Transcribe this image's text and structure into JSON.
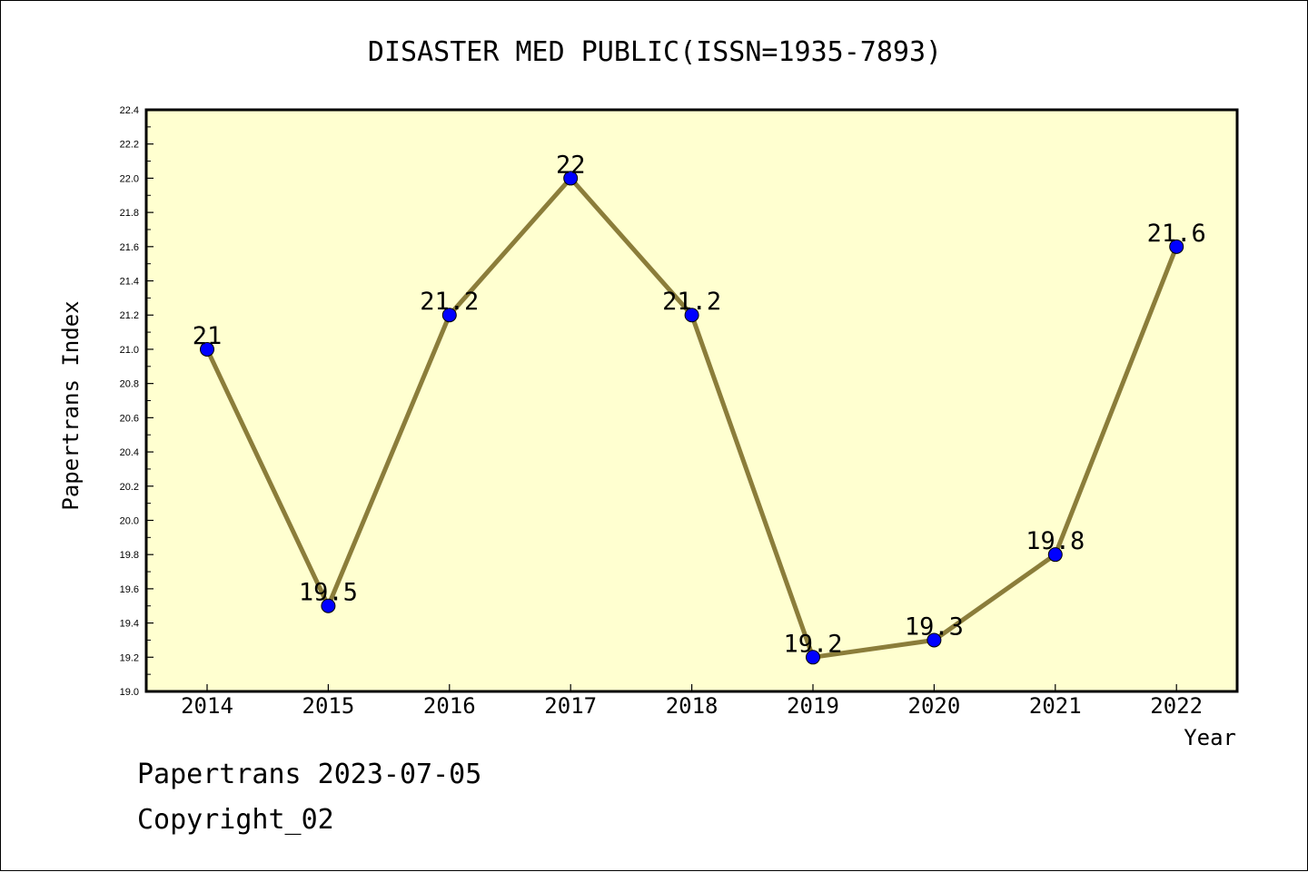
{
  "chart_data": {
    "type": "line",
    "title": "DISASTER MED PUBLIC(ISSN=1935-7893)",
    "xlabel": "Year",
    "ylabel": "Papertrans Index",
    "x": [
      "2014",
      "2015",
      "2016",
      "2017",
      "2018",
      "2019",
      "2020",
      "2021",
      "2022"
    ],
    "series": [
      {
        "values": [
          21,
          19.5,
          21.2,
          22,
          21.2,
          19.2,
          19.3,
          19.8,
          21.6
        ],
        "labels": [
          "21",
          "19.5",
          "21.2",
          "22",
          "21.2",
          "19.2",
          "19.3",
          "19.8",
          "21.6"
        ],
        "line_color": "#8b7d3a",
        "marker_color": "#0000ff"
      }
    ],
    "ylim": [
      19.0,
      22.4
    ],
    "yticks": [
      "19.0",
      "19.2",
      "19.4",
      "19.6",
      "19.8",
      "20.0",
      "20.2",
      "20.4",
      "20.6",
      "20.8",
      "21.0",
      "21.2",
      "21.4",
      "21.6",
      "21.8",
      "22.0",
      "22.2",
      "22.4"
    ],
    "grid": false,
    "plot_background": "#ffffd0"
  },
  "footer": {
    "line1": "Papertrans 2023-07-05",
    "line2": "Copyright_02"
  }
}
